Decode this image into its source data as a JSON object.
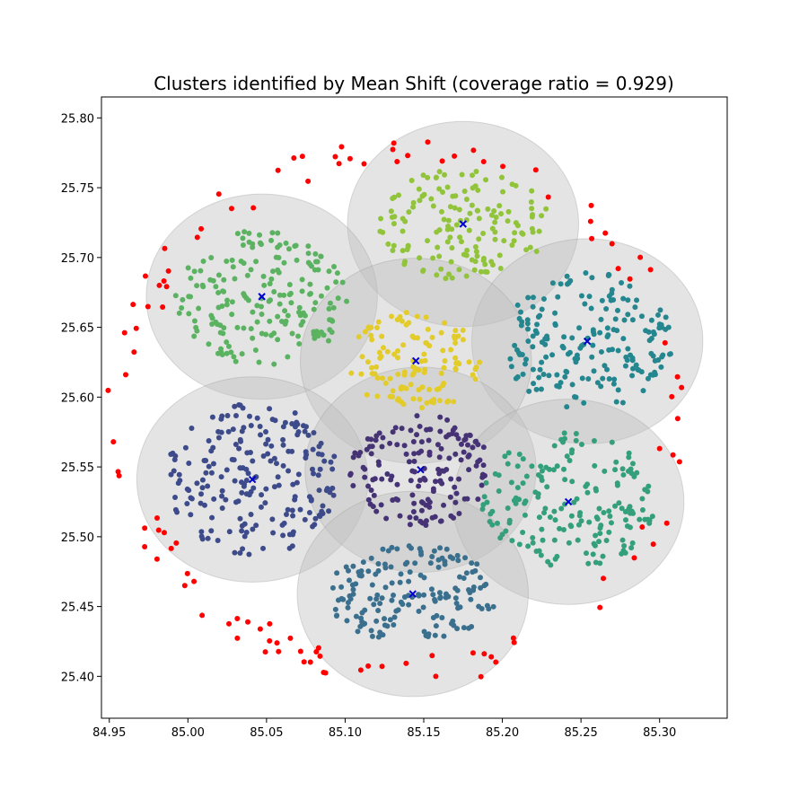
{
  "chart_data": {
    "type": "scatter",
    "title": "Clusters identified by Mean Shift (coverage ratio = 0.929)",
    "xlabel": "",
    "ylabel": "",
    "xlim": [
      84.945,
      85.343
    ],
    "ylim": [
      25.37,
      25.815
    ],
    "xticks": [
      "84.95",
      "85.00",
      "85.05",
      "85.10",
      "85.15",
      "85.20",
      "85.25",
      "85.30"
    ],
    "yticks": [
      "25.40",
      "25.45",
      "25.50",
      "25.55",
      "25.60",
      "25.65",
      "25.70",
      "25.75",
      "25.80"
    ],
    "grid": false,
    "legend": "none",
    "coverage_ratio": 0.929,
    "bandwidth": 0.0735,
    "outlier_color": "#ff0000",
    "center_marker_color": "#0000cc",
    "circle_color": "#bfbfbf",
    "clusters": [
      {
        "center": [
          85.175,
          25.724
        ],
        "color": "#91c43a",
        "spread": [
          0.055,
          0.04
        ],
        "count": 150
      },
      {
        "center": [
          85.047,
          25.672
        ],
        "color": "#5bb361",
        "spread": [
          0.055,
          0.05
        ],
        "count": 190
      },
      {
        "center": [
          85.254,
          25.64
        ],
        "color": "#24868e",
        "spread": [
          0.055,
          0.05
        ],
        "count": 190
      },
      {
        "center": [
          85.145,
          25.626
        ],
        "color": "#e3cc2a",
        "spread": [
          0.045,
          0.035
        ],
        "count": 120
      },
      {
        "center": [
          85.041,
          25.541
        ],
        "color": "#3e4b8a",
        "spread": [
          0.055,
          0.055
        ],
        "count": 210
      },
      {
        "center": [
          85.148,
          25.548
        ],
        "color": "#463375",
        "spread": [
          0.045,
          0.04
        ],
        "count": 160
      },
      {
        "center": [
          85.242,
          25.525
        ],
        "color": "#34a07b",
        "spread": [
          0.055,
          0.05
        ],
        "count": 180
      },
      {
        "center": [
          85.143,
          25.459
        ],
        "color": "#3a6f8e",
        "spread": [
          0.055,
          0.035
        ],
        "count": 170
      }
    ],
    "outlier_ring": {
      "center": [
        85.135,
        25.59
      ],
      "radius_x": 0.175,
      "radius_y": 0.185,
      "count": 110
    }
  }
}
